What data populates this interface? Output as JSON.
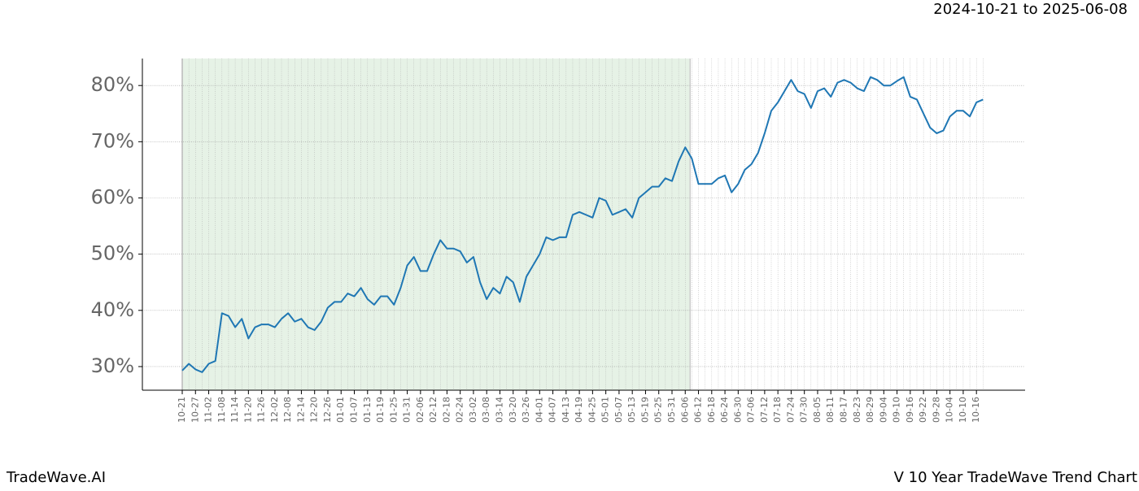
{
  "chart_data": {
    "type": "line",
    "date_range": "2024-10-21 to 2025-06-08",
    "footer_left": "TradeWave.AI",
    "footer_right": "V 10 Year TradeWave Trend Chart",
    "categories": [
      "10-21",
      null,
      "10-27",
      null,
      "11-02",
      null,
      "11-08",
      null,
      "11-14",
      null,
      "11-20",
      null,
      "11-26",
      null,
      "12-02",
      null,
      "12-08",
      null,
      "12-14",
      null,
      "12-20",
      null,
      "12-26",
      null,
      "01-01",
      null,
      "01-07",
      null,
      "01-13",
      null,
      "01-19",
      null,
      "01-25",
      null,
      "01-31",
      null,
      "02-06",
      null,
      "02-12",
      null,
      "02-18",
      null,
      "02-24",
      null,
      "03-02",
      null,
      "03-08",
      null,
      "03-14",
      null,
      "03-20",
      null,
      "03-26",
      null,
      "04-01",
      null,
      "04-07",
      null,
      "04-13",
      null,
      "04-19",
      null,
      "04-25",
      null,
      "05-01",
      null,
      "05-07",
      null,
      "05-13",
      null,
      "05-19",
      null,
      "05-25",
      null,
      "05-31",
      null,
      "06-06",
      null,
      "06-12",
      null,
      "06-18",
      null,
      "06-24",
      null,
      "06-30",
      null,
      "07-06",
      null,
      "07-12",
      null,
      "07-18",
      null,
      "07-24",
      null,
      "07-30",
      null,
      "08-05",
      null,
      "08-11",
      null,
      "08-17",
      null,
      "08-23",
      null,
      "08-29",
      null,
      "09-04",
      null,
      "09-10",
      null,
      "09-16",
      null,
      "09-22",
      null,
      "09-28",
      null,
      "10-04",
      null,
      "10-10",
      null,
      "10-16",
      null
    ],
    "series": [
      {
        "color": "#1f77b4",
        "values": [
          29.3,
          30.5,
          29.5,
          29,
          30.5,
          31,
          39.5,
          39,
          37,
          38.5,
          35,
          37,
          37.5,
          37.5,
          37,
          38.5,
          39.5,
          38,
          38.5,
          37,
          36.5,
          38,
          40.5,
          41.5,
          41.5,
          43,
          42.5,
          44,
          42,
          41,
          42.5,
          42.5,
          41,
          44,
          48,
          49.5,
          47,
          47,
          50,
          52.5,
          51,
          51,
          50.5,
          48.5,
          49.5,
          45,
          42,
          44,
          43,
          46,
          45,
          41.5,
          46,
          48,
          50,
          53,
          52.5,
          53,
          53,
          57,
          57.5,
          57,
          56.5,
          60,
          59.5,
          57,
          57.5,
          58,
          56.5,
          60,
          61,
          62,
          62,
          63.5,
          63,
          66.5,
          69,
          67,
          62.5,
          62.5,
          62.5,
          63.5,
          64,
          61,
          62.5,
          65,
          66,
          68,
          71.5,
          75.5,
          77,
          79,
          81,
          79,
          78.5,
          76,
          79,
          79.5,
          78,
          80.5,
          81,
          80.5,
          79.5,
          79,
          81.5,
          81,
          80,
          80,
          80.8,
          81.5,
          78,
          77.5,
          75,
          72.5,
          71.5,
          72,
          74.5,
          75.5,
          75.5,
          74.5,
          77,
          77.5
        ]
      }
    ],
    "shaded_range": [
      "10-21",
      "06-06"
    ],
    "shade_color": "#e6f2e6",
    "ylim": [
      25.8,
      84.8
    ],
    "yticks": [
      {
        "value": 30,
        "label": "30%"
      },
      {
        "value": 40,
        "label": "40%"
      },
      {
        "value": 50,
        "label": "50%"
      },
      {
        "value": 60,
        "label": "60%"
      },
      {
        "value": 70,
        "label": "70%"
      },
      {
        "value": 80,
        "label": "80%"
      }
    ],
    "grid": true
  }
}
